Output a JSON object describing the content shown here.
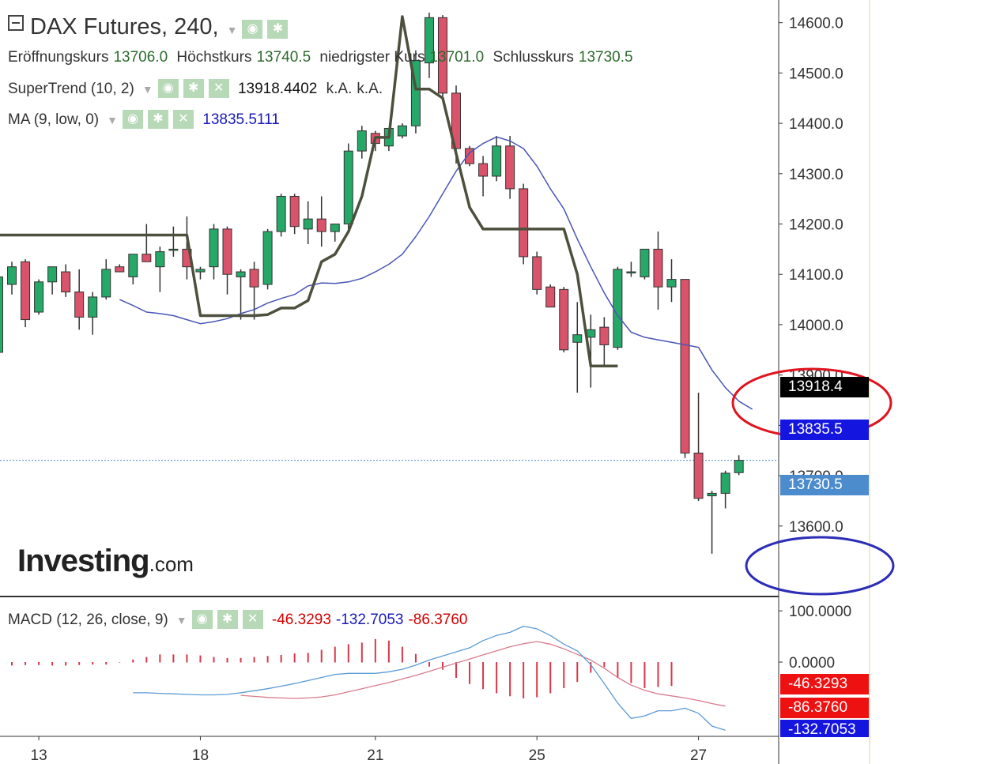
{
  "header": {
    "title": "DAX Futures, 240,",
    "ohlc": [
      {
        "label": "Eröffnungskurs",
        "value": "13706.0"
      },
      {
        "label": "Höchstkurs",
        "value": "13740.5"
      },
      {
        "label": "niedrigster Kurs",
        "value": "13701.0"
      },
      {
        "label": "Schlusskurs",
        "value": "13730.5"
      }
    ]
  },
  "indicators": {
    "supertrend": {
      "label": "SuperTrend (10, 2)",
      "value": "13918.4402",
      "extra1": "k.A.",
      "extra2": "k.A."
    },
    "ma": {
      "label": "MA (9, low, 0)",
      "value": "13835.5111"
    },
    "macd": {
      "label": "MACD (12, 26, close, 9)",
      "v1": "-46.3293",
      "v2": "-132.7053",
      "v3": "-86.3760"
    }
  },
  "logo": {
    "brand": "Investing",
    "suffix": ".com"
  },
  "price_tags": {
    "supertrend": "13918.4",
    "ma": "13835.5",
    "last": "13730.5"
  },
  "macd_tags": {
    "hist": "-46.3293",
    "signal": "-86.3760",
    "macd": "-132.7053"
  },
  "icons": {
    "visibility": "eye-icon",
    "settings": "gear-icon",
    "remove": "close-icon",
    "collapse": "minus-box-icon"
  },
  "colors": {
    "up": "#26a869",
    "down": "#d9536a",
    "supertrend": "#4c503c",
    "ma": "#4a55b5",
    "macd_line": "#5b9bd5",
    "signal_line": "#d77c8c",
    "hist": "#d9364a",
    "ellipse_red": "#e0141e",
    "ellipse_blue": "#2d2db8"
  },
  "chart_data": {
    "type": "candlestick",
    "price_axis": {
      "ylim": [
        13460,
        14645
      ],
      "ticks": [
        13600,
        13700,
        13800,
        13900,
        14000,
        14100,
        14200,
        14300,
        14400,
        14500,
        14600
      ],
      "tick_labels": [
        "13600.0",
        "13700.0",
        "13800.0",
        "13900.0",
        "14000.0",
        "14100.0",
        "14200.0",
        "14300.0",
        "14400.0",
        "14500.0",
        "14600.0"
      ]
    },
    "x_axis": {
      "labels": [
        "13",
        "18",
        "21",
        "25",
        "27"
      ],
      "label_bar_index": [
        3,
        15,
        28,
        40,
        52
      ]
    },
    "candles": [
      {
        "o": 13945,
        "h": 14105,
        "l": 13945,
        "c": 14095
      },
      {
        "o": 14080,
        "h": 14125,
        "l": 14060,
        "c": 14115
      },
      {
        "o": 14125,
        "h": 14130,
        "l": 13995,
        "c": 14010
      },
      {
        "o": 14025,
        "h": 14090,
        "l": 14020,
        "c": 14085
      },
      {
        "o": 14085,
        "h": 14110,
        "l": 14060,
        "c": 14115
      },
      {
        "o": 14105,
        "h": 14120,
        "l": 14055,
        "c": 14065
      },
      {
        "o": 14065,
        "h": 14110,
        "l": 13990,
        "c": 14015
      },
      {
        "o": 14015,
        "h": 14065,
        "l": 13980,
        "c": 14055
      },
      {
        "o": 14055,
        "h": 14130,
        "l": 14050,
        "c": 14110
      },
      {
        "o": 14115,
        "h": 14120,
        "l": 14105,
        "c": 14105
      },
      {
        "o": 14095,
        "h": 14140,
        "l": 14080,
        "c": 14140
      },
      {
        "o": 14140,
        "h": 14200,
        "l": 14130,
        "c": 14125
      },
      {
        "o": 14115,
        "h": 14155,
        "l": 14065,
        "c": 14145
      },
      {
        "o": 14150,
        "h": 14195,
        "l": 14135,
        "c": 14150
      },
      {
        "o": 14150,
        "h": 14215,
        "l": 14090,
        "c": 14115
      },
      {
        "o": 14105,
        "h": 14115,
        "l": 14090,
        "c": 14110
      },
      {
        "o": 14115,
        "h": 14200,
        "l": 14090,
        "c": 14190
      },
      {
        "o": 14190,
        "h": 14195,
        "l": 14060,
        "c": 14100
      },
      {
        "o": 14095,
        "h": 14110,
        "l": 14010,
        "c": 14105
      },
      {
        "o": 14110,
        "h": 14125,
        "l": 14010,
        "c": 14075
      },
      {
        "o": 14080,
        "h": 14190,
        "l": 14070,
        "c": 14185
      },
      {
        "o": 14185,
        "h": 14260,
        "l": 14175,
        "c": 14255
      },
      {
        "o": 14255,
        "h": 14260,
        "l": 14180,
        "c": 14195
      },
      {
        "o": 14190,
        "h": 14245,
        "l": 14160,
        "c": 14210
      },
      {
        "o": 14210,
        "h": 14255,
        "l": 14155,
        "c": 14185
      },
      {
        "o": 14185,
        "h": 14200,
        "l": 14165,
        "c": 14200
      },
      {
        "o": 14200,
        "h": 14360,
        "l": 14190,
        "c": 14345
      },
      {
        "o": 14345,
        "h": 14395,
        "l": 14330,
        "c": 14385
      },
      {
        "o": 14380,
        "h": 14385,
        "l": 14345,
        "c": 14360
      },
      {
        "o": 14355,
        "h": 14390,
        "l": 14345,
        "c": 14390
      },
      {
        "o": 14375,
        "h": 14400,
        "l": 14370,
        "c": 14395
      },
      {
        "o": 14395,
        "h": 14545,
        "l": 14380,
        "c": 14525
      },
      {
        "o": 14520,
        "h": 14620,
        "l": 14490,
        "c": 14610
      },
      {
        "o": 14610,
        "h": 14615,
        "l": 14450,
        "c": 14460
      },
      {
        "o": 14460,
        "h": 14475,
        "l": 14320,
        "c": 14350
      },
      {
        "o": 14350,
        "h": 14355,
        "l": 14315,
        "c": 14320
      },
      {
        "o": 14320,
        "h": 14335,
        "l": 14255,
        "c": 14295
      },
      {
        "o": 14295,
        "h": 14375,
        "l": 14285,
        "c": 14355
      },
      {
        "o": 14355,
        "h": 14375,
        "l": 14250,
        "c": 14270
      },
      {
        "o": 14270,
        "h": 14280,
        "l": 14120,
        "c": 14135
      },
      {
        "o": 14135,
        "h": 14145,
        "l": 14060,
        "c": 14070
      },
      {
        "o": 14075,
        "h": 14080,
        "l": 14035,
        "c": 14035
      },
      {
        "o": 14070,
        "h": 14075,
        "l": 13945,
        "c": 13950
      },
      {
        "o": 13965,
        "h": 14045,
        "l": 13865,
        "c": 13980
      },
      {
        "o": 13975,
        "h": 14020,
        "l": 13875,
        "c": 13990
      },
      {
        "o": 13995,
        "h": 14015,
        "l": 13920,
        "c": 13960
      },
      {
        "o": 13955,
        "h": 14115,
        "l": 13950,
        "c": 14110
      },
      {
        "o": 14105,
        "h": 14125,
        "l": 14095,
        "c": 14105
      },
      {
        "o": 14095,
        "h": 14150,
        "l": 14090,
        "c": 14150
      },
      {
        "o": 14150,
        "h": 14185,
        "l": 14030,
        "c": 14075
      },
      {
        "o": 14075,
        "h": 14130,
        "l": 14045,
        "c": 14090
      },
      {
        "o": 14090,
        "h": 14090,
        "l": 13735,
        "c": 13745
      },
      {
        "o": 13745,
        "h": 13865,
        "l": 13650,
        "c": 13655
      },
      {
        "o": 13660,
        "h": 13670,
        "l": 13545,
        "c": 13665
      },
      {
        "o": 13665,
        "h": 13710,
        "l": 13635,
        "c": 13705
      },
      {
        "o": 13706,
        "h": 13740.5,
        "l": 13701,
        "c": 13730.5
      }
    ],
    "supertrend": [
      14178,
      14178,
      14178,
      14178,
      14178,
      14178,
      14178,
      14178,
      14178,
      14178,
      14178,
      14178,
      14178,
      14178,
      14178,
      14018,
      14018,
      14018,
      14018,
      14018,
      14020,
      14033,
      14033,
      14048,
      14125,
      14140,
      14185,
      14255,
      14372,
      14372,
      14612,
      14468,
      14468,
      14450,
      14340,
      14233,
      14190,
      14190,
      14190,
      14190,
      14190,
      14190,
      14190,
      14100,
      13918,
      13918,
      13918
    ],
    "supertrend_start_index": 0,
    "ma": [
      14050,
      14038,
      14025,
      14022,
      14018,
      14010,
      14002,
      14006,
      14012,
      14022,
      14030,
      14043,
      14052,
      14060,
      14077,
      14083,
      14082,
      14085,
      14092,
      14105,
      14120,
      14140,
      14175,
      14215,
      14260,
      14305,
      14342,
      14360,
      14373,
      14365,
      14350,
      14315,
      14270,
      14230,
      14170,
      14115,
      14063,
      14018,
      13985,
      13975,
      13970,
      13965,
      13960,
      13955,
      13910,
      13875,
      13848,
      13832
    ],
    "ma_start_index": 9,
    "macd_axis": {
      "ylim": [
        -145,
        125
      ],
      "ticks": [
        0,
        100
      ],
      "tick_labels": [
        "0.0000",
        "100.0000"
      ]
    },
    "macd_hist": [
      -6,
      -6,
      -5,
      -5,
      -6,
      -6,
      -5,
      -4,
      -4,
      0,
      5,
      10,
      15,
      15,
      15,
      13,
      10,
      8,
      8,
      10,
      12,
      14,
      17,
      18,
      24,
      30,
      35,
      38,
      45,
      42,
      30,
      16,
      -8,
      -14,
      -30,
      -42,
      -52,
      -60,
      -66,
      -70,
      -68,
      -60,
      -50,
      -38,
      -20,
      -9,
      -30,
      -40,
      -50,
      -48,
      -46
    ],
    "macd_hist_start_index": 0,
    "macd_line": [
      -60,
      -60,
      -61,
      -62,
      -63,
      -64,
      -64,
      -63,
      -60,
      -56,
      -52,
      -47,
      -42,
      -36,
      -30,
      -24,
      -22,
      -22,
      -22,
      -19,
      -14,
      -6,
      4,
      12,
      20,
      28,
      42,
      52,
      58,
      70,
      65,
      52,
      35,
      22,
      -5,
      -42,
      -80,
      -110,
      -105,
      -95,
      -95,
      -90,
      -100,
      -125,
      -133
    ],
    "macd_line_start_index": 10,
    "signal_line": [
      -65,
      -67,
      -69,
      -70,
      -71,
      -70,
      -68,
      -64,
      -58,
      -52,
      -46,
      -40,
      -33,
      -26,
      -18,
      -10,
      -2,
      6,
      14,
      22,
      30,
      36,
      40,
      35,
      26,
      15,
      4,
      -12,
      -30,
      -45,
      -55,
      -62,
      -66,
      -70,
      -75,
      -81,
      -86
    ],
    "signal_line_start_index": 18
  }
}
